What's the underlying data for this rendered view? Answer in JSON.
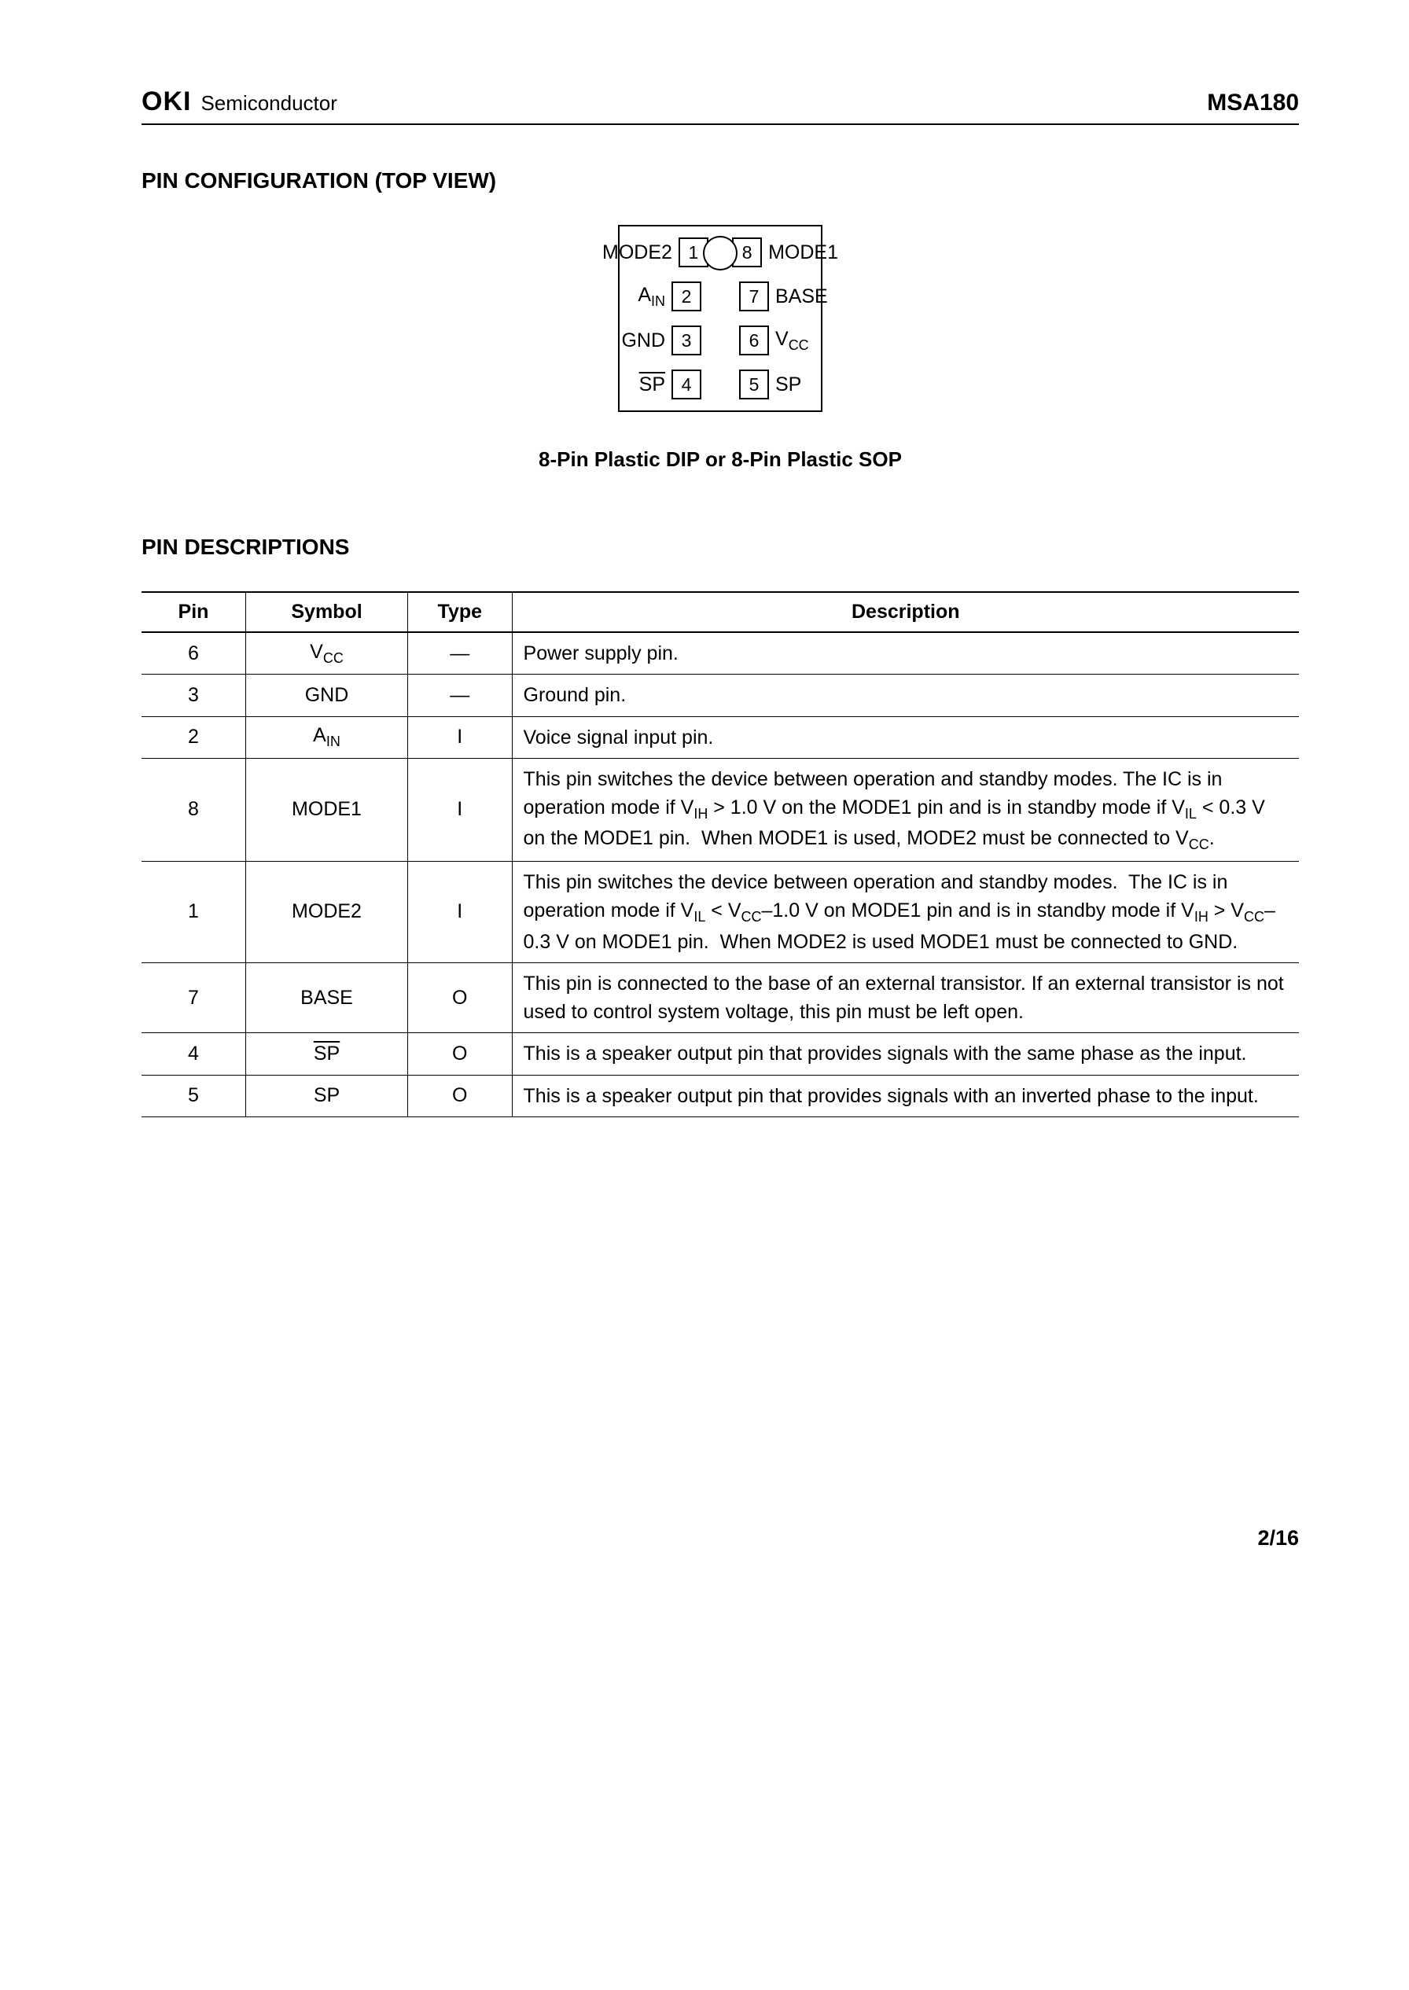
{
  "header": {
    "logo": "OKI",
    "logo_sub": "Semiconductor",
    "part_no": "MSA180"
  },
  "section1": {
    "title": "PIN CONFIGURATION (TOP VIEW)",
    "caption": "8-Pin Plastic DIP or 8-Pin Plastic SOP",
    "ic_pins": {
      "left": [
        {
          "num": "1",
          "label": "MODE2",
          "sub": "",
          "ovl": false
        },
        {
          "num": "2",
          "label": "A",
          "sub": "IN",
          "ovl": false
        },
        {
          "num": "3",
          "label": "GND",
          "sub": "",
          "ovl": false
        },
        {
          "num": "4",
          "label": "SP",
          "sub": "",
          "ovl": true
        }
      ],
      "right": [
        {
          "num": "8",
          "label": "MODE1",
          "sub": "",
          "ovl": false
        },
        {
          "num": "7",
          "label": "BASE",
          "sub": "",
          "ovl": false
        },
        {
          "num": "6",
          "label": "V",
          "sub": "CC",
          "ovl": false
        },
        {
          "num": "5",
          "label": "SP",
          "sub": "",
          "ovl": false
        }
      ]
    }
  },
  "section2": {
    "title": "PIN DESCRIPTIONS",
    "columns": [
      "Pin",
      "Symbol",
      "Type",
      "Description"
    ],
    "rows": [
      {
        "pin": "6",
        "symbol_html": "V<span class=\"sub\">CC</span>",
        "type": "—",
        "desc_html": "Power supply pin."
      },
      {
        "pin": "3",
        "symbol_html": "GND",
        "type": "—",
        "desc_html": "Ground pin."
      },
      {
        "pin": "2",
        "symbol_html": "A<span class=\"sub\">IN</span>",
        "type": "I",
        "desc_html": "Voice signal input pin."
      },
      {
        "pin": "8",
        "symbol_html": "MODE1",
        "type": "I",
        "desc_html": "This pin switches the device between operation and standby modes. The IC is in operation mode if V<span class=\"sub\">IH</span> &gt; 1.0 V on the MODE1 pin and is in standby mode if V<span class=\"sub\">IL</span> &lt; 0.3 V on the MODE1 pin.&nbsp;&nbsp;When MODE1 is used, MODE2 must be connected to V<span class=\"sub\">CC</span>."
      },
      {
        "pin": "1",
        "symbol_html": "MODE2",
        "type": "I",
        "desc_html": "This pin switches the device between operation and standby modes.&nbsp; The IC is in operation mode if V<span class=\"sub\">IL</span> &lt; V<span class=\"sub\">CC</span>–1.0 V on MODE1 pin and is in standby mode if V<span class=\"sub\">IH</span> &gt; V<span class=\"sub\">CC</span>–0.3 V on MODE1 pin.&nbsp;&nbsp;When MODE2 is used MODE1 must be connected to GND."
      },
      {
        "pin": "7",
        "symbol_html": "BASE",
        "type": "O",
        "desc_html": "This pin is connected to the base of an external transistor. If an external transistor is not used to control system voltage, this pin must be left open."
      },
      {
        "pin": "4",
        "symbol_html": "<span class=\"ovl\">SP</span>",
        "type": "O",
        "desc_html": "This is a speaker output pin that provides signals with the same phase as the input."
      },
      {
        "pin": "5",
        "symbol_html": "SP",
        "type": "O",
        "desc_html": "This is a speaker output pin that provides signals with an inverted phase to the input."
      }
    ]
  },
  "footer": "2/16"
}
